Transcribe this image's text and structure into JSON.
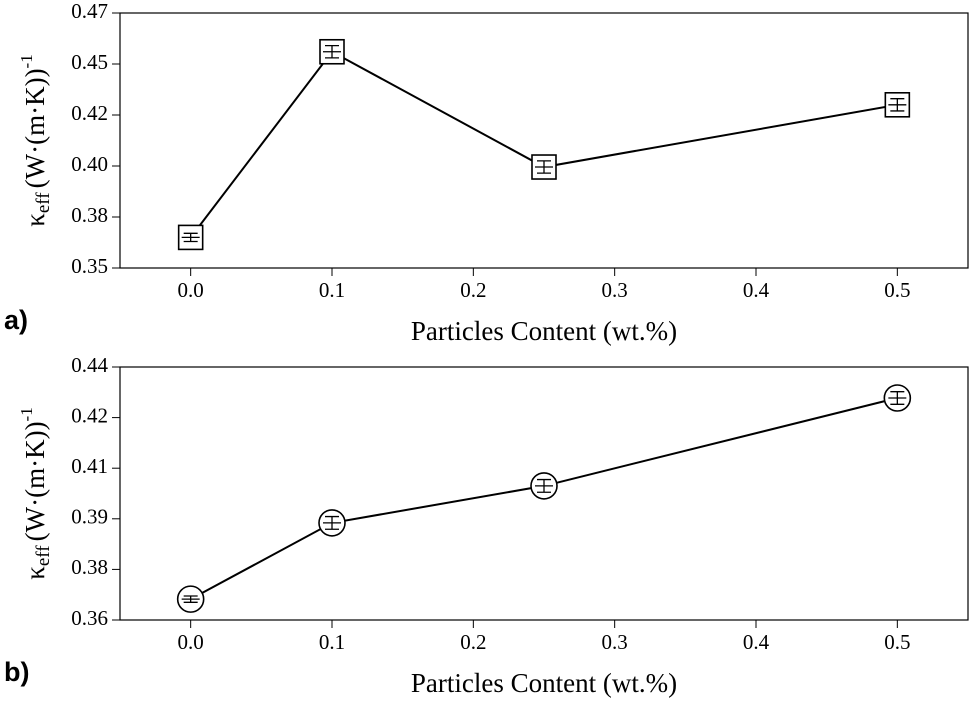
{
  "chart_data": [
    {
      "type": "line",
      "panel_label": "a)",
      "marker": "square",
      "color": "#000000",
      "x_label": "Particles Content (wt.%)",
      "y_label": {
        "symbol": "κ",
        "subscript": "eff",
        "unit": "(W·(m·K))",
        "superscript": "-1"
      },
      "x": [
        0,
        0.1,
        0.25,
        0.5
      ],
      "series": [
        {
          "values": [
            0.365,
            0.456,
            0.3995,
            0.43
          ],
          "errors": [
            0.002,
            0.003,
            0.003,
            0.003
          ]
        }
      ],
      "xlim": [
        -0.05,
        0.55
      ],
      "xticks": [
        {
          "value": 0,
          "label": "0.0"
        },
        0.1,
        0.2,
        0.3,
        0.4,
        0.5
      ],
      "ylim": [
        0.35,
        0.475
      ],
      "yticks": [
        0.35,
        {
          "value": 0.375,
          "label": "0.38"
        },
        {
          "value": 0.4,
          "label": "0.40"
        },
        {
          "value": 0.425,
          "label": "0.42"
        },
        0.45,
        {
          "value": 0.475,
          "label": "0.47"
        }
      ]
    },
    {
      "type": "line",
      "panel_label": "b)",
      "marker": "circle",
      "color": "#000000",
      "x_label": "Particles Content (wt.%)",
      "y_label": {
        "symbol": "κ",
        "subscript": "eff",
        "unit": "(W·(m·K))",
        "superscript": "-1"
      },
      "x": [
        0,
        0.1,
        0.25,
        0.5
      ],
      "series": [
        {
          "values": [
            0.3666,
            0.3907,
            0.4024,
            0.4302
          ],
          "errors": [
            0.001,
            0.002,
            0.002,
            0.002
          ]
        }
      ],
      "xlim": [
        -0.05,
        0.55
      ],
      "xticks": [
        {
          "value": 0,
          "label": "0.0"
        },
        0.1,
        0.2,
        0.3,
        0.4,
        0.5
      ],
      "ylim": [
        0.36,
        0.44
      ],
      "yticks": [
        0.36,
        {
          "value": 0.376,
          "label": "0.38"
        },
        {
          "value": 0.392,
          "label": "0.39"
        },
        {
          "value": 0.408,
          "label": "0.41"
        },
        {
          "value": 0.424,
          "label": "0.42"
        },
        0.44
      ]
    }
  ]
}
